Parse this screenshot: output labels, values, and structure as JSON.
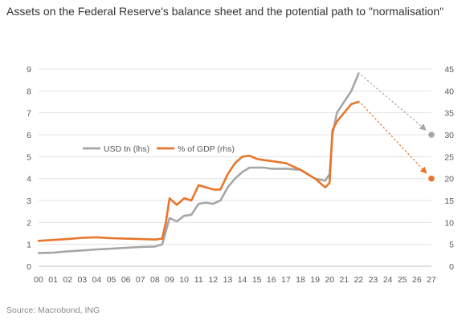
{
  "title": "Assets on the Federal Reserve's balance sheet and the potential path to \"normalisation\"",
  "source": "Source: Macrobond, ING",
  "chart_data": {
    "type": "line",
    "x_ticks": [
      "00",
      "01",
      "02",
      "03",
      "04",
      "05",
      "06",
      "07",
      "08",
      "09",
      "10",
      "11",
      "12",
      "13",
      "14",
      "15",
      "16",
      "17",
      "18",
      "19",
      "20",
      "21",
      "22",
      "23",
      "24",
      "25",
      "26",
      "27"
    ],
    "y_left": {
      "min": 0,
      "max": 9,
      "ticks": [
        0,
        1,
        2,
        3,
        4,
        5,
        6,
        7,
        8,
        9
      ]
    },
    "y_right": {
      "min": 0,
      "max": 45,
      "ticks": [
        0,
        5,
        10,
        15,
        20,
        25,
        30,
        35,
        40,
        45
      ]
    },
    "grid": "horizontal",
    "legend_position": "center-left",
    "series": [
      {
        "name": "USD tn (lhs)",
        "axis": "left",
        "color": "#a6a6a6",
        "x": [
          2000,
          2001,
          2002,
          2003,
          2004,
          2005,
          2006,
          2007,
          2008,
          2008.5,
          2008.75,
          2009,
          2009.5,
          2010,
          2010.5,
          2011,
          2011.5,
          2012,
          2012.5,
          2013,
          2013.5,
          2014,
          2014.5,
          2015,
          2015.5,
          2016,
          2017,
          2018,
          2019,
          2019.7,
          2020,
          2020.2,
          2020.5,
          2021,
          2021.5,
          2022
        ],
        "y": [
          0.6,
          0.62,
          0.68,
          0.72,
          0.77,
          0.8,
          0.84,
          0.88,
          0.9,
          1.0,
          1.6,
          2.2,
          2.05,
          2.3,
          2.35,
          2.85,
          2.9,
          2.85,
          3.0,
          3.6,
          4.0,
          4.3,
          4.5,
          4.5,
          4.5,
          4.45,
          4.45,
          4.4,
          4.0,
          3.9,
          4.2,
          6.0,
          7.0,
          7.5,
          8.0,
          8.8
        ]
      },
      {
        "name": "% of GDP (rhs)",
        "axis": "right",
        "color": "#e8752a",
        "x": [
          2000,
          2001,
          2002,
          2003,
          2004,
          2005,
          2006,
          2007,
          2008,
          2008.5,
          2008.75,
          2009,
          2009.5,
          2010,
          2010.5,
          2011,
          2011.5,
          2012,
          2012.5,
          2013,
          2013.5,
          2014,
          2014.5,
          2015,
          2015.5,
          2016,
          2017,
          2018,
          2019,
          2019.7,
          2020,
          2020.2,
          2020.5,
          2021,
          2021.5,
          2022
        ],
        "y": [
          5.8,
          6.0,
          6.2,
          6.5,
          6.6,
          6.4,
          6.3,
          6.2,
          6.1,
          6.3,
          10.0,
          15.5,
          14.0,
          15.5,
          15.0,
          18.5,
          18.0,
          17.5,
          17.5,
          21.0,
          23.5,
          25.0,
          25.2,
          24.5,
          24.2,
          24.0,
          23.5,
          22.0,
          20.0,
          18.0,
          19.0,
          31.0,
          33.0,
          35.0,
          37.0,
          37.5
        ]
      }
    ],
    "projection_points": [
      {
        "series": "USD tn (lhs)",
        "x": 2027,
        "y": 6.0,
        "color": "#a6a6a6"
      },
      {
        "series": "% of GDP (rhs)",
        "x": 2027,
        "y": 20.0,
        "color": "#e8752a"
      }
    ]
  }
}
